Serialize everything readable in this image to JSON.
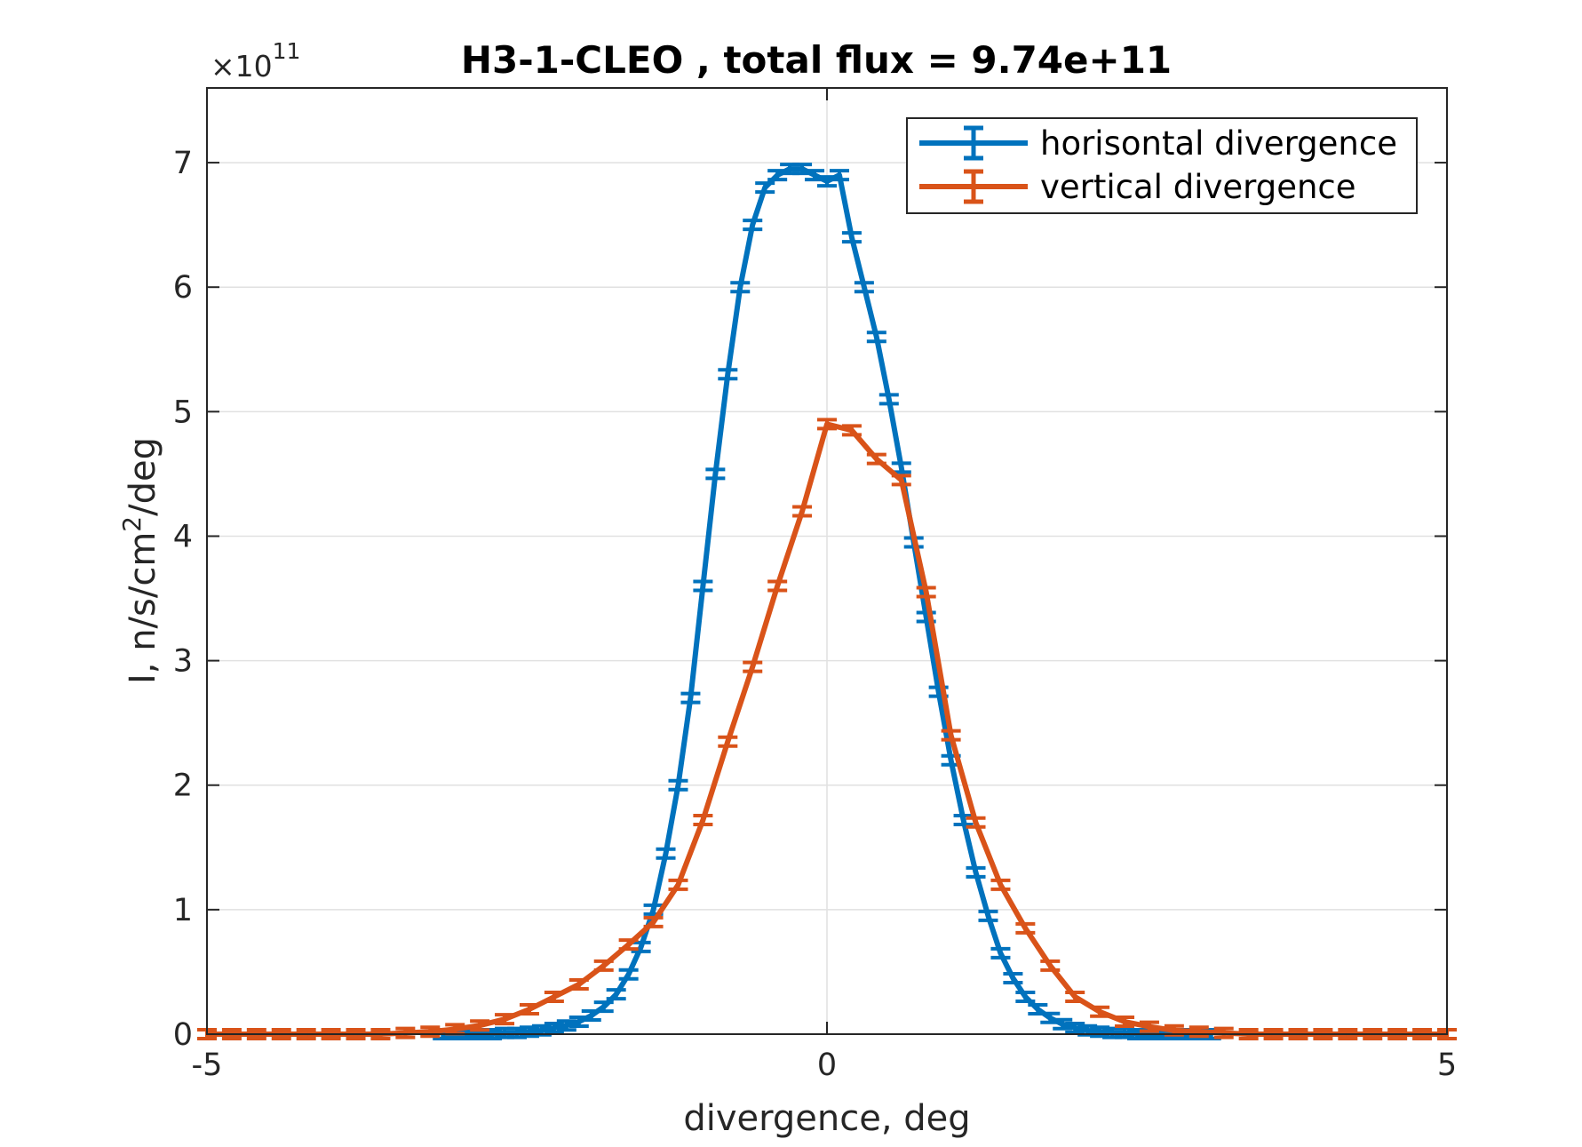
{
  "chart_data": {
    "type": "line",
    "title": "H3-1-CLEO , total flux =  9.74e+11",
    "xlabel": "divergence, deg",
    "ylabel": "I, n/s/cm",
    "ylabel_sup": "2",
    "ylabel_suffix": "/deg",
    "exponent_prefix": "×10",
    "exponent_power": "11",
    "xlim": [
      -5,
      5
    ],
    "ylim": [
      0,
      7.6
    ],
    "y_multiplier": 100000000000.0,
    "xticks": [
      -5,
      0,
      5
    ],
    "xtick_labels": [
      "-5",
      "0",
      "5"
    ],
    "yticks": [
      0,
      1,
      2,
      3,
      4,
      5,
      6,
      7
    ],
    "ytick_labels": [
      "0",
      "1",
      "2",
      "3",
      "4",
      "5",
      "6",
      "7"
    ],
    "grid": true,
    "legend_position": "top-right",
    "series": [
      {
        "name": "horisontal divergence",
        "color": "#0072bd",
        "x": [
          -3.1,
          -3.0,
          -2.9,
          -2.8,
          -2.7,
          -2.6,
          -2.5,
          -2.4,
          -2.3,
          -2.2,
          -2.1,
          -2.0,
          -1.9,
          -1.8,
          -1.7,
          -1.6,
          -1.5,
          -1.4,
          -1.3,
          -1.2,
          -1.1,
          -1.0,
          -0.9,
          -0.8,
          -0.7,
          -0.6,
          -0.5,
          -0.4,
          -0.3,
          -0.2,
          -0.1,
          0.0,
          0.1,
          0.2,
          0.3,
          0.4,
          0.5,
          0.6,
          0.7,
          0.8,
          0.9,
          1.0,
          1.1,
          1.2,
          1.3,
          1.4,
          1.5,
          1.6,
          1.7,
          1.8,
          1.9,
          2.0,
          2.1,
          2.2,
          2.3,
          2.4,
          2.5,
          2.6,
          2.7,
          2.8,
          2.9,
          3.0,
          3.1
        ],
        "y": [
          0.0,
          0.0,
          0.0,
          0.0,
          0.0,
          0.01,
          0.01,
          0.02,
          0.03,
          0.05,
          0.07,
          0.1,
          0.15,
          0.22,
          0.32,
          0.48,
          0.7,
          1.0,
          1.45,
          2.0,
          2.7,
          3.6,
          4.5,
          5.3,
          6.0,
          6.5,
          6.8,
          6.9,
          6.95,
          6.95,
          6.9,
          6.85,
          6.9,
          6.4,
          6.0,
          5.6,
          5.1,
          4.55,
          3.95,
          3.35,
          2.75,
          2.2,
          1.72,
          1.3,
          0.95,
          0.65,
          0.45,
          0.3,
          0.2,
          0.13,
          0.08,
          0.05,
          0.03,
          0.02,
          0.01,
          0.01,
          0.0,
          0.0,
          0.0,
          0.0,
          0.0,
          0.0,
          0.0
        ]
      },
      {
        "name": "vertical divergence",
        "color": "#d95319",
        "x": [
          -5.0,
          -4.8,
          -4.6,
          -4.4,
          -4.2,
          -4.0,
          -3.8,
          -3.6,
          -3.4,
          -3.2,
          -3.0,
          -2.8,
          -2.6,
          -2.4,
          -2.2,
          -2.0,
          -1.8,
          -1.6,
          -1.4,
          -1.2,
          -1.0,
          -0.8,
          -0.6,
          -0.4,
          -0.2,
          0.0,
          0.2,
          0.4,
          0.6,
          0.8,
          1.0,
          1.2,
          1.4,
          1.6,
          1.8,
          2.0,
          2.2,
          2.4,
          2.6,
          2.8,
          3.0,
          3.2,
          3.4,
          3.6,
          3.8,
          4.0,
          4.2,
          4.4,
          4.6,
          4.8,
          5.0
        ],
        "y": [
          0.0,
          0.0,
          0.0,
          0.0,
          0.0,
          0.0,
          0.0,
          0.0,
          0.01,
          0.02,
          0.04,
          0.07,
          0.12,
          0.2,
          0.3,
          0.4,
          0.55,
          0.72,
          0.9,
          1.2,
          1.72,
          2.35,
          2.95,
          3.6,
          4.2,
          4.9,
          4.85,
          4.62,
          4.45,
          3.55,
          2.4,
          1.7,
          1.2,
          0.85,
          0.55,
          0.3,
          0.18,
          0.1,
          0.06,
          0.03,
          0.02,
          0.01,
          0.0,
          0.0,
          0.0,
          0.0,
          0.0,
          0.0,
          0.0,
          0.0,
          0.0
        ]
      }
    ]
  }
}
